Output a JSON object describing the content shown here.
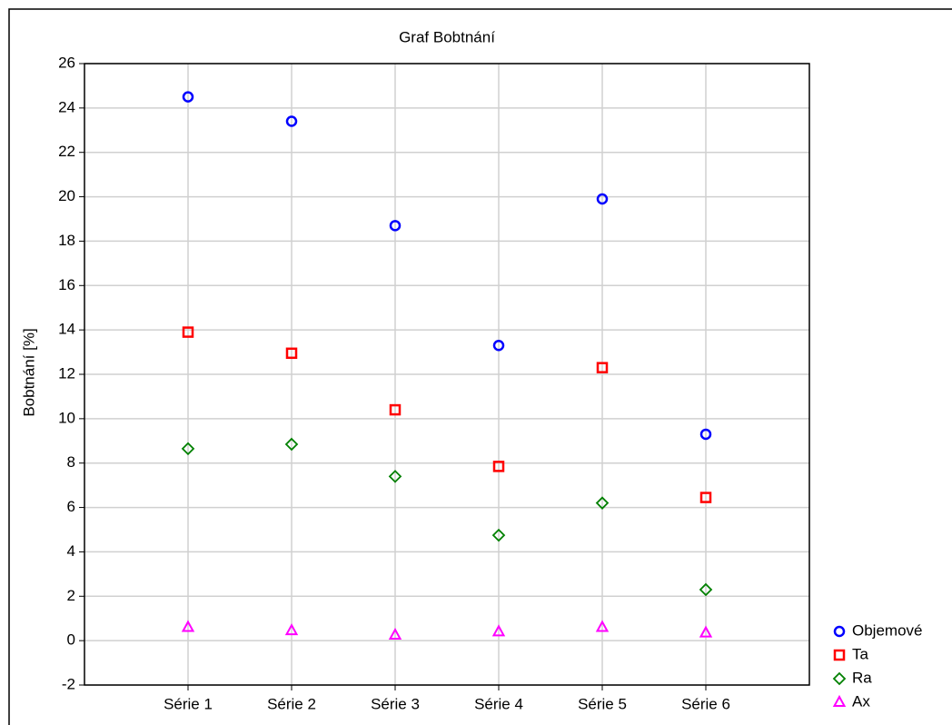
{
  "chart_data": {
    "type": "scatter",
    "title": "Graf Bobtnání",
    "y_label": "Bobtnání [%]",
    "categories": [
      "Série 1",
      "Série 2",
      "Série 3",
      "Série 4",
      "Série 5",
      "Série 6"
    ],
    "series": [
      {
        "name": "Objemové",
        "color": "#0000ff",
        "marker": "circle",
        "values": [
          24.5,
          23.4,
          18.7,
          13.3,
          19.9,
          9.3
        ]
      },
      {
        "name": "Ta",
        "color": "#ff0000",
        "marker": "square",
        "values": [
          13.9,
          12.95,
          10.4,
          7.85,
          12.3,
          6.45
        ]
      },
      {
        "name": "Ra",
        "color": "#008000",
        "marker": "diamond",
        "values": [
          8.65,
          8.85,
          7.4,
          4.75,
          6.2,
          2.3
        ]
      },
      {
        "name": "Ax",
        "color": "#ff00ff",
        "marker": "triangle",
        "values": [
          0.6,
          0.45,
          0.25,
          0.4,
          0.6,
          0.35
        ]
      }
    ],
    "ylim": [
      -2,
      26
    ],
    "yticks": [
      -2,
      0,
      2,
      4,
      6,
      8,
      10,
      12,
      14,
      16,
      18,
      20,
      22,
      24,
      26
    ],
    "grid": true,
    "legend": "bottom-right"
  }
}
